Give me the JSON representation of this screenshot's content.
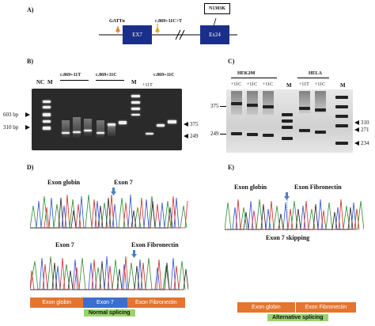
{
  "panels": {
    "A": "A)",
    "B": "B)",
    "C": "C)",
    "D": "D)",
    "E": "E)"
  },
  "diagram": {
    "gattn": "GATTn",
    "mutation": "c.869+11C>T",
    "n1303k": "N1303K",
    "ex7": "EX7",
    "ex24": "Ex24"
  },
  "gel_b": {
    "lane_nc": "NC",
    "lane_m1": "M",
    "group1": "c.869+11T",
    "group2": "c.869+11C",
    "lane_m2": "M",
    "group3": "c.869+11C",
    "sub_11t": "+11T",
    "size_603": "603 bp",
    "size_310": "310 bp",
    "size_375": "375",
    "size_249": "249"
  },
  "gel_c": {
    "cell1": "HEK298",
    "cell2": "HELA",
    "lane_11c_1": "+11C",
    "lane_11c_2": "+11C",
    "lane_11c_3": "+11C",
    "lane_m1": "M",
    "lane_11t_1": "+11T",
    "lane_11c_4": "+11C",
    "lane_m2": "M",
    "size_375": "375",
    "size_249": "249",
    "size_310": "310",
    "size_271": "271",
    "size_234": "234"
  },
  "seq_d": {
    "top_left": "Exon globin",
    "top_right": "Exon 7",
    "bottom_left": "Exon 7",
    "bottom_right": "Exon Fibronectin",
    "bar_globin": "Exon globin",
    "bar_exon7": "Exon 7",
    "bar_fibronectin": "Exon Fibronectin",
    "caption": "Normal splicing"
  },
  "seq_e": {
    "left": "Exon globin",
    "right": "Exon Fibronectin",
    "note": "Exon 7 skipping",
    "bar_globin": "Exon globin",
    "bar_fibronectin": "Exon Fibronectin",
    "caption": "Alternative splicing"
  },
  "colors": {
    "exon_box": "#1a2f8a",
    "exon_bar_orange": "#e4742e",
    "exon_bar_blue": "#3a6fd0",
    "caption_green": "#9ad16b",
    "marker_arrow": "#4a7fc0"
  }
}
